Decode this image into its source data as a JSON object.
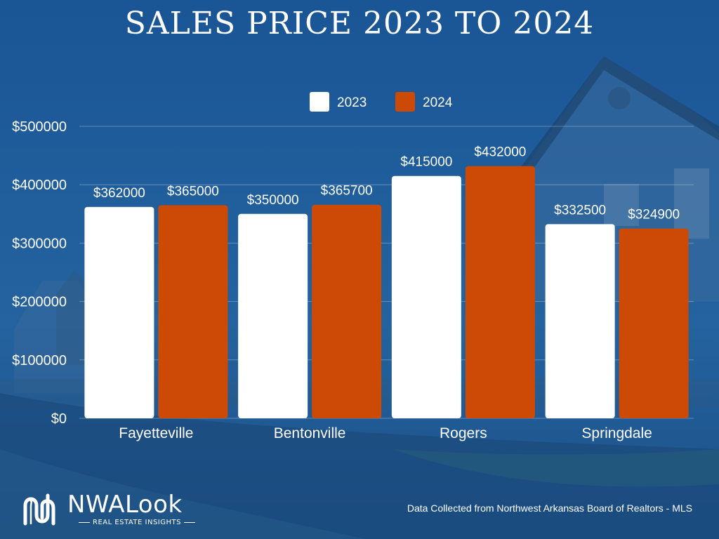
{
  "chart_data": {
    "type": "bar",
    "title": "SALES PRICE 2023 TO 2024",
    "categories": [
      "Fayetteville",
      "Bentonville",
      "Rogers",
      "Springdale"
    ],
    "series": [
      {
        "name": "2023",
        "color": "#ffffff",
        "values": [
          362000,
          350000,
          415000,
          332500
        ]
      },
      {
        "name": "2024",
        "color": "#cc4a06",
        "values": [
          365000,
          365700,
          432000,
          324900
        ]
      }
    ],
    "data_labels": [
      [
        "$362000",
        "$350000",
        "$415000",
        "$332500"
      ],
      [
        "$365000",
        "$365700",
        "$432000",
        "$324900"
      ]
    ],
    "yticks": [
      0,
      100000,
      200000,
      300000,
      400000,
      500000
    ],
    "ytick_labels": [
      "$0",
      "$100000",
      "$200000",
      "$300000",
      "$400000",
      "$500000"
    ],
    "ylim": [
      0,
      500000
    ],
    "xlabel": "",
    "ylabel": "",
    "grid": true,
    "legend_position": "top-center"
  },
  "logo": {
    "name": "NWALook",
    "tagline": "REAL ESTATE INSIGHTS",
    "icon": "nwa-n-logo-icon"
  },
  "source": "Data Collected from Northwest Arkansas Board of Realtors - MLS"
}
